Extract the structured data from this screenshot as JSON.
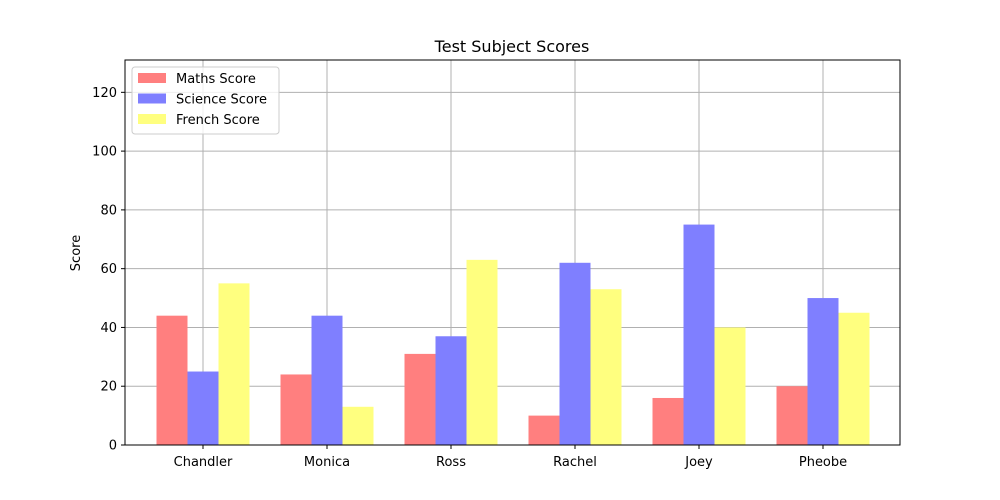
{
  "chart_data": {
    "type": "bar",
    "title": "Test Subject Scores",
    "xlabel": "",
    "ylabel": "Score",
    "categories": [
      "Chandler",
      "Monica",
      "Ross",
      "Rachel",
      "Joey",
      "Pheobe"
    ],
    "series": [
      {
        "name": "Maths Score",
        "color": "#ff7f7f",
        "values": [
          44,
          24,
          31,
          10,
          16,
          20
        ]
      },
      {
        "name": "Science Score",
        "color": "#7f7fff",
        "values": [
          25,
          44,
          37,
          62,
          75,
          50
        ]
      },
      {
        "name": "French Score",
        "color": "#ffff7f",
        "values": [
          55,
          13,
          63,
          53,
          40,
          45
        ]
      }
    ],
    "ylim": [
      0,
      131
    ],
    "yticks": [
      0,
      20,
      40,
      60,
      80,
      100,
      120
    ],
    "grid": true,
    "legend_position": "top-left"
  }
}
